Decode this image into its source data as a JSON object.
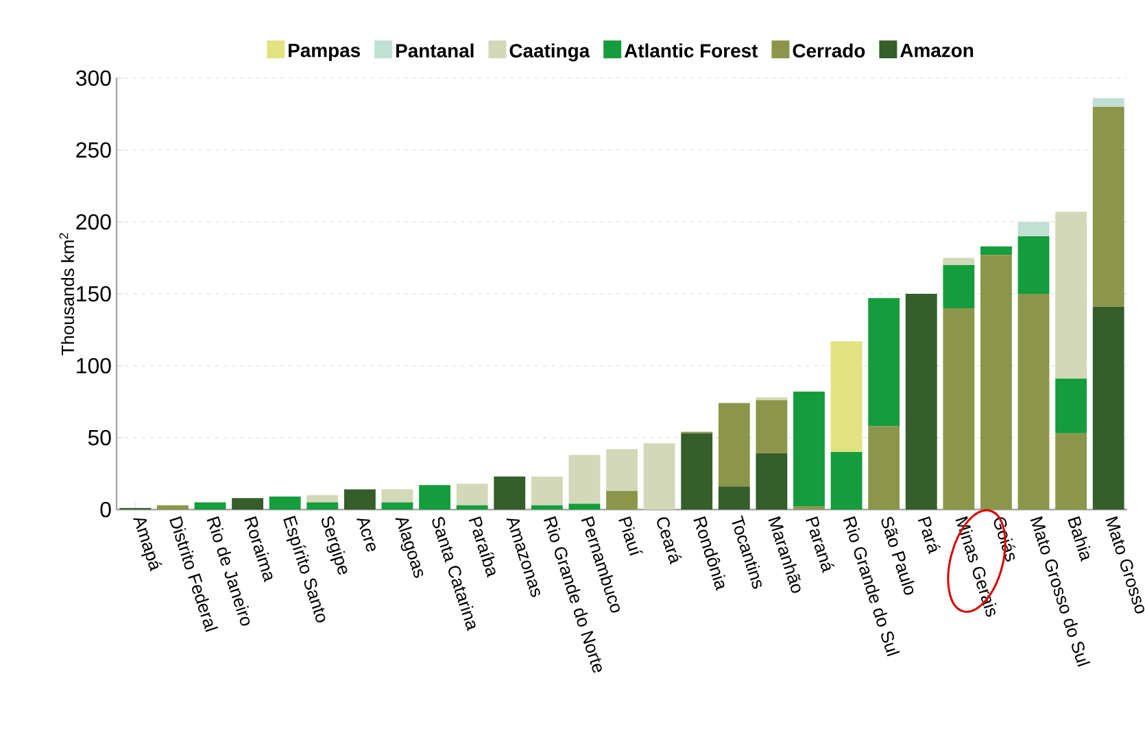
{
  "chart_data": {
    "type": "bar",
    "stacked": true,
    "ylabel": "Thousands km$^{2}$",
    "categories": [
      "Amapá",
      "Distrito Federal",
      "Rio de Janeiro",
      "Roraima",
      "Espírito Santo",
      "Sergipe",
      "Acre",
      "Alagoas",
      "Santa Catarina",
      "Paraíba",
      "Amazonas",
      "Rio Grande do Norte",
      "Pernambuco",
      "Piauí",
      "Ceará",
      "Rondônia",
      "Tocantins",
      "Maranhão",
      "Paraná",
      "Rio Grande do Sul",
      "São Paulo",
      "Pará",
      "Minas Gerais",
      "Goiás",
      "Mato Grosso do Sul",
      "Bahia",
      "Mato Grosso"
    ],
    "series": [
      {
        "name": "Amazon",
        "color": "#355e2a",
        "values": [
          1,
          null,
          null,
          8,
          null,
          null,
          14,
          null,
          null,
          null,
          23,
          null,
          null,
          null,
          null,
          53,
          16,
          39,
          null,
          null,
          null,
          150,
          null,
          null,
          null,
          null,
          141
        ]
      },
      {
        "name": "Cerrado",
        "color": "#8c964a",
        "values": [
          null,
          3,
          null,
          null,
          null,
          null,
          null,
          null,
          null,
          null,
          null,
          null,
          null,
          13,
          null,
          1,
          58,
          37,
          2,
          null,
          58,
          null,
          140,
          177,
          150,
          53,
          139
        ]
      },
      {
        "name": "Atlantic Forest",
        "color": "#159c3c",
        "values": [
          null,
          null,
          5,
          null,
          9,
          5,
          null,
          5,
          17,
          3,
          null,
          3,
          4,
          null,
          null,
          null,
          null,
          null,
          80,
          40,
          89,
          null,
          30,
          6,
          40,
          38,
          null
        ]
      },
      {
        "name": "Caatinga",
        "color": "#d3d8b8",
        "values": [
          null,
          null,
          null,
          null,
          null,
          5,
          null,
          9,
          null,
          15,
          null,
          20,
          34,
          29,
          46,
          null,
          null,
          2,
          null,
          null,
          null,
          null,
          5,
          null,
          null,
          116,
          null
        ]
      },
      {
        "name": "Pantanal",
        "color": "#c0e0d4",
        "values": [
          null,
          null,
          null,
          null,
          null,
          null,
          null,
          null,
          null,
          null,
          null,
          null,
          null,
          null,
          null,
          null,
          null,
          null,
          null,
          null,
          null,
          null,
          null,
          null,
          10,
          null,
          6
        ]
      },
      {
        "name": "Pampas",
        "color": "#e2e280",
        "values": [
          null,
          null,
          null,
          null,
          null,
          null,
          null,
          null,
          null,
          null,
          null,
          null,
          null,
          null,
          null,
          null,
          null,
          null,
          null,
          77,
          null,
          null,
          null,
          null,
          null,
          null,
          null
        ]
      }
    ],
    "ylim": [
      0,
      300
    ],
    "yticks": [
      0,
      50,
      100,
      150,
      200,
      250,
      300
    ],
    "grid": "y",
    "legend": "top"
  }
}
